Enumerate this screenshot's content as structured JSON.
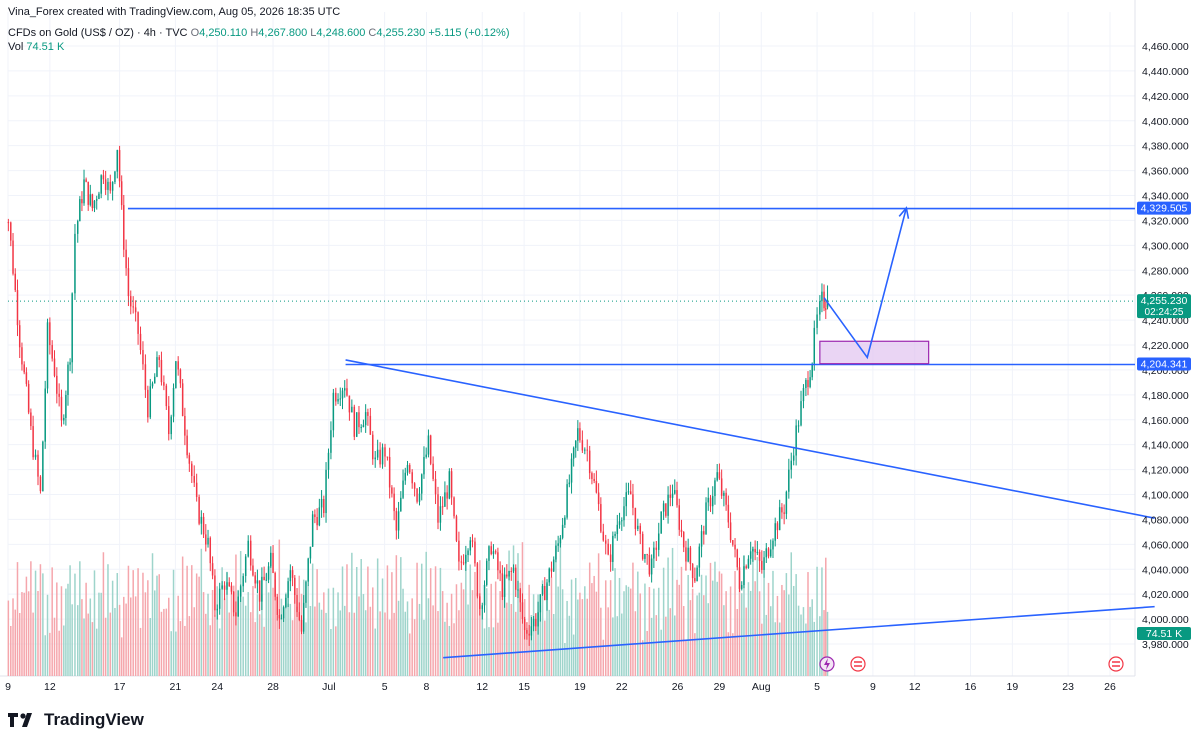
{
  "header": {
    "credit": "Vina_Forex created with TradingView.com, Aug 05, 2026 18:35 UTC",
    "symbol": "CFDs on Gold (US$ / OZ) · 4h · TVC",
    "open_label": "O",
    "open": "4,250.110",
    "high_label": "H",
    "high": "4,267.800",
    "low_label": "L",
    "low": "4,248.600",
    "close_label": "C",
    "close": "4,255.230",
    "change": "+5.115 (+0.12%)",
    "vol_label": "Vol",
    "vol": "74.51 K"
  },
  "footer": {
    "brand": "TradingView"
  },
  "colors": {
    "up": "#089981",
    "down": "#f23645",
    "up_vol": "#9ed4cb",
    "down_vol": "#f5a6ac",
    "drawing": "#2962ff",
    "zone_fill": "#e1c3f0",
    "zone_border": "#9c27b0",
    "grid": "#f0f3fa",
    "axis_text": "#131722"
  },
  "chart_data": {
    "type": "candlestick",
    "instrument": "CFDs on Gold (US$ / OZ)",
    "timeframe": "4h",
    "ylim": [
      3975,
      4480
    ],
    "y_ticks": [
      "4,460.000",
      "4,440.000",
      "4,420.000",
      "4,400.000",
      "4,380.000",
      "4,360.000",
      "4,340.000",
      "4,320.000",
      "4,300.000",
      "4,280.000",
      "4,260.000",
      "4,240.000",
      "4,220.000",
      "4,200.000",
      "4,180.000",
      "4,160.000",
      "4,140.000",
      "4,120.000",
      "4,100.000",
      "4,080.000",
      "4,060.000",
      "4,040.000",
      "4,020.000",
      "4,000.000",
      "3,980.000"
    ],
    "y_tick_values": [
      4460,
      4440,
      4420,
      4400,
      4380,
      4360,
      4340,
      4320,
      4300,
      4280,
      4260,
      4240,
      4220,
      4200,
      4180,
      4160,
      4140,
      4120,
      4100,
      4080,
      4060,
      4040,
      4020,
      4000,
      3980
    ],
    "x_ticks": [
      "9",
      "12",
      "17",
      "21",
      "24",
      "28",
      "Jul",
      "5",
      "8",
      "12",
      "15",
      "19",
      "22",
      "26",
      "29",
      "Aug",
      "5",
      "9",
      "12",
      "16",
      "19",
      "23",
      "26"
    ],
    "x_tick_days": [
      -22,
      -19,
      -14,
      -10,
      -7,
      -3,
      1,
      5,
      8,
      12,
      15,
      19,
      22,
      26,
      29,
      32,
      36,
      40,
      43,
      47,
      50,
      54,
      57
    ],
    "last_candle_day": 36.75,
    "price_labels": [
      {
        "text": "4,329.505",
        "price": 4329.505,
        "color": "#2962ff"
      },
      {
        "text": "4,255.230",
        "price": 4255.23,
        "color": "#089981",
        "sub": "02:24:25"
      },
      {
        "text": "4,204.341",
        "price": 4204.341,
        "color": "#2962ff"
      },
      {
        "text": "74.51 K",
        "price": 3988,
        "color": "#089981"
      }
    ],
    "candle_anchors": [
      [
        -22.5,
        4345
      ],
      [
        -21.8,
        4320
      ],
      [
        -21.0,
        4225
      ],
      [
        -20.2,
        4150
      ],
      [
        -19.5,
        4100
      ],
      [
        -19.0,
        4230
      ],
      [
        -18.5,
        4200
      ],
      [
        -18.0,
        4155
      ],
      [
        -17.4,
        4215
      ],
      [
        -17.0,
        4310
      ],
      [
        -16.4,
        4350
      ],
      [
        -15.8,
        4330
      ],
      [
        -15.0,
        4360
      ],
      [
        -14.5,
        4340
      ],
      [
        -14.0,
        4380
      ],
      [
        -13.7,
        4325
      ],
      [
        -13.2,
        4260
      ],
      [
        -12.5,
        4230
      ],
      [
        -11.8,
        4170
      ],
      [
        -11.0,
        4210
      ],
      [
        -10.3,
        4150
      ],
      [
        -9.8,
        4210
      ],
      [
        -9.0,
        4140
      ],
      [
        -8.3,
        4090
      ],
      [
        -7.5,
        4060
      ],
      [
        -7.0,
        4010
      ],
      [
        -6.3,
        4030
      ],
      [
        -5.5,
        4005
      ],
      [
        -4.6,
        4060
      ],
      [
        -3.8,
        4020
      ],
      [
        -3.0,
        4045
      ],
      [
        -2.4,
        4000
      ],
      [
        -1.6,
        4040
      ],
      [
        -0.8,
        3990
      ],
      [
        0.0,
        4080
      ],
      [
        0.8,
        4090
      ],
      [
        1.5,
        4180
      ],
      [
        2.3,
        4190
      ],
      [
        3.0,
        4155
      ],
      [
        3.8,
        4165
      ],
      [
        4.5,
        4125
      ],
      [
        5.2,
        4135
      ],
      [
        6.0,
        4070
      ],
      [
        6.8,
        4130
      ],
      [
        7.5,
        4100
      ],
      [
        8.3,
        4140
      ],
      [
        9.0,
        4080
      ],
      [
        9.8,
        4110
      ],
      [
        10.5,
        4040
      ],
      [
        11.3,
        4070
      ],
      [
        12.0,
        4010
      ],
      [
        12.8,
        4060
      ],
      [
        13.6,
        4025
      ],
      [
        14.4,
        4040
      ],
      [
        15.2,
        3990
      ],
      [
        16.0,
        4000
      ],
      [
        16.8,
        4030
      ],
      [
        17.6,
        4060
      ],
      [
        18.4,
        4110
      ],
      [
        19.0,
        4150
      ],
      [
        19.7,
        4135
      ],
      [
        20.5,
        4090
      ],
      [
        21.2,
        4045
      ],
      [
        22.0,
        4085
      ],
      [
        22.8,
        4100
      ],
      [
        23.5,
        4060
      ],
      [
        24.3,
        4040
      ],
      [
        25.0,
        4080
      ],
      [
        25.8,
        4105
      ],
      [
        26.6,
        4060
      ],
      [
        27.4,
        4035
      ],
      [
        28.2,
        4085
      ],
      [
        29.0,
        4115
      ],
      [
        29.8,
        4080
      ],
      [
        30.6,
        4030
      ],
      [
        31.4,
        4060
      ],
      [
        32.2,
        4040
      ],
      [
        33.0,
        4070
      ],
      [
        33.8,
        4090
      ],
      [
        34.5,
        4140
      ],
      [
        35.2,
        4180
      ],
      [
        35.8,
        4210
      ],
      [
        36.2,
        4240
      ],
      [
        36.5,
        4255
      ],
      [
        36.75,
        4255.23
      ]
    ]
  },
  "annotations": {
    "resistance_price": 4329.505,
    "support_price": 4204.341,
    "zone": {
      "from_day": 36.2,
      "to_day": 44.0,
      "from_price": 4205,
      "to_price": 4223
    },
    "projection": [
      [
        36.5,
        4258
      ],
      [
        39.6,
        4210
      ],
      [
        42.4,
        4330
      ]
    ],
    "triangle_upper": [
      [
        2.2,
        4208
      ],
      [
        60.2,
        4081
      ]
    ],
    "triangle_lower": [
      [
        9.2,
        3969
      ],
      [
        60.2,
        4010
      ]
    ],
    "resistance_from_day": -13.4,
    "support_from_day": 2.2
  }
}
